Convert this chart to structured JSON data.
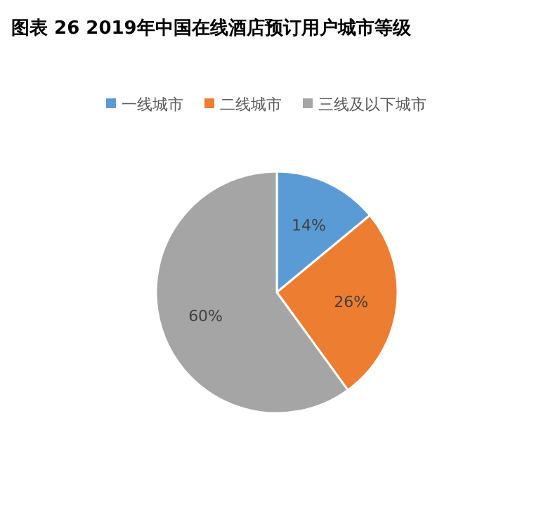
{
  "chart_data": {
    "type": "pie",
    "title": "图表 26 2019年中国在线酒店预订用户城市等级",
    "categories": [
      "一线城市",
      "二线城市",
      "三线及以下城市"
    ],
    "values": [
      14,
      26,
      60
    ],
    "colors": [
      "#5b9bd5",
      "#ed7d31",
      "#a5a5a5"
    ],
    "value_labels": [
      "14%",
      "26%",
      "60%"
    ],
    "legend": "top"
  }
}
